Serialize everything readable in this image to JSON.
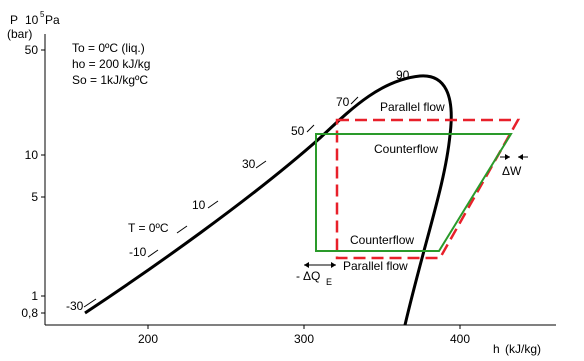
{
  "axes": {
    "y_label_line1": "P",
    "y_label_exp_base": "10",
    "y_label_exp": "5",
    "y_label_unit": "Pa",
    "y_label_line2": "(bar)",
    "x_label_main": "h",
    "x_label_unit": "(kJ/kg)",
    "y_scale": "log",
    "x_ticks": [
      "200",
      "300",
      "400"
    ],
    "y_ticks": [
      "50",
      "10",
      "5",
      "1",
      "0,8"
    ]
  },
  "reference_box": {
    "line1": "To = 0ºC (liq.)",
    "line2": "ho = 200 kJ/kg",
    "line3": "So = 1kJ/kgºC"
  },
  "isotherm_labels": {
    "t0": "T = 0ºC",
    "m10": "-10",
    "m30": "-30",
    "p10": "10",
    "p30": "30",
    "p50": "50",
    "p70": "70",
    "p90": "90"
  },
  "cycle_labels": {
    "parallel_top": "Parallel flow",
    "counter_top": "Counterflow",
    "counter_bottom": "Counterflow",
    "parallel_bottom": "Parallel flow",
    "delta_w": "ΔW",
    "delta_qe_sign": "-",
    "delta_qe": "ΔQ",
    "delta_qe_sub": "E"
  },
  "colors": {
    "saturation_curve": "#000000",
    "parallel_flow": "#e8202a",
    "counterflow": "#2a9a2a"
  }
}
